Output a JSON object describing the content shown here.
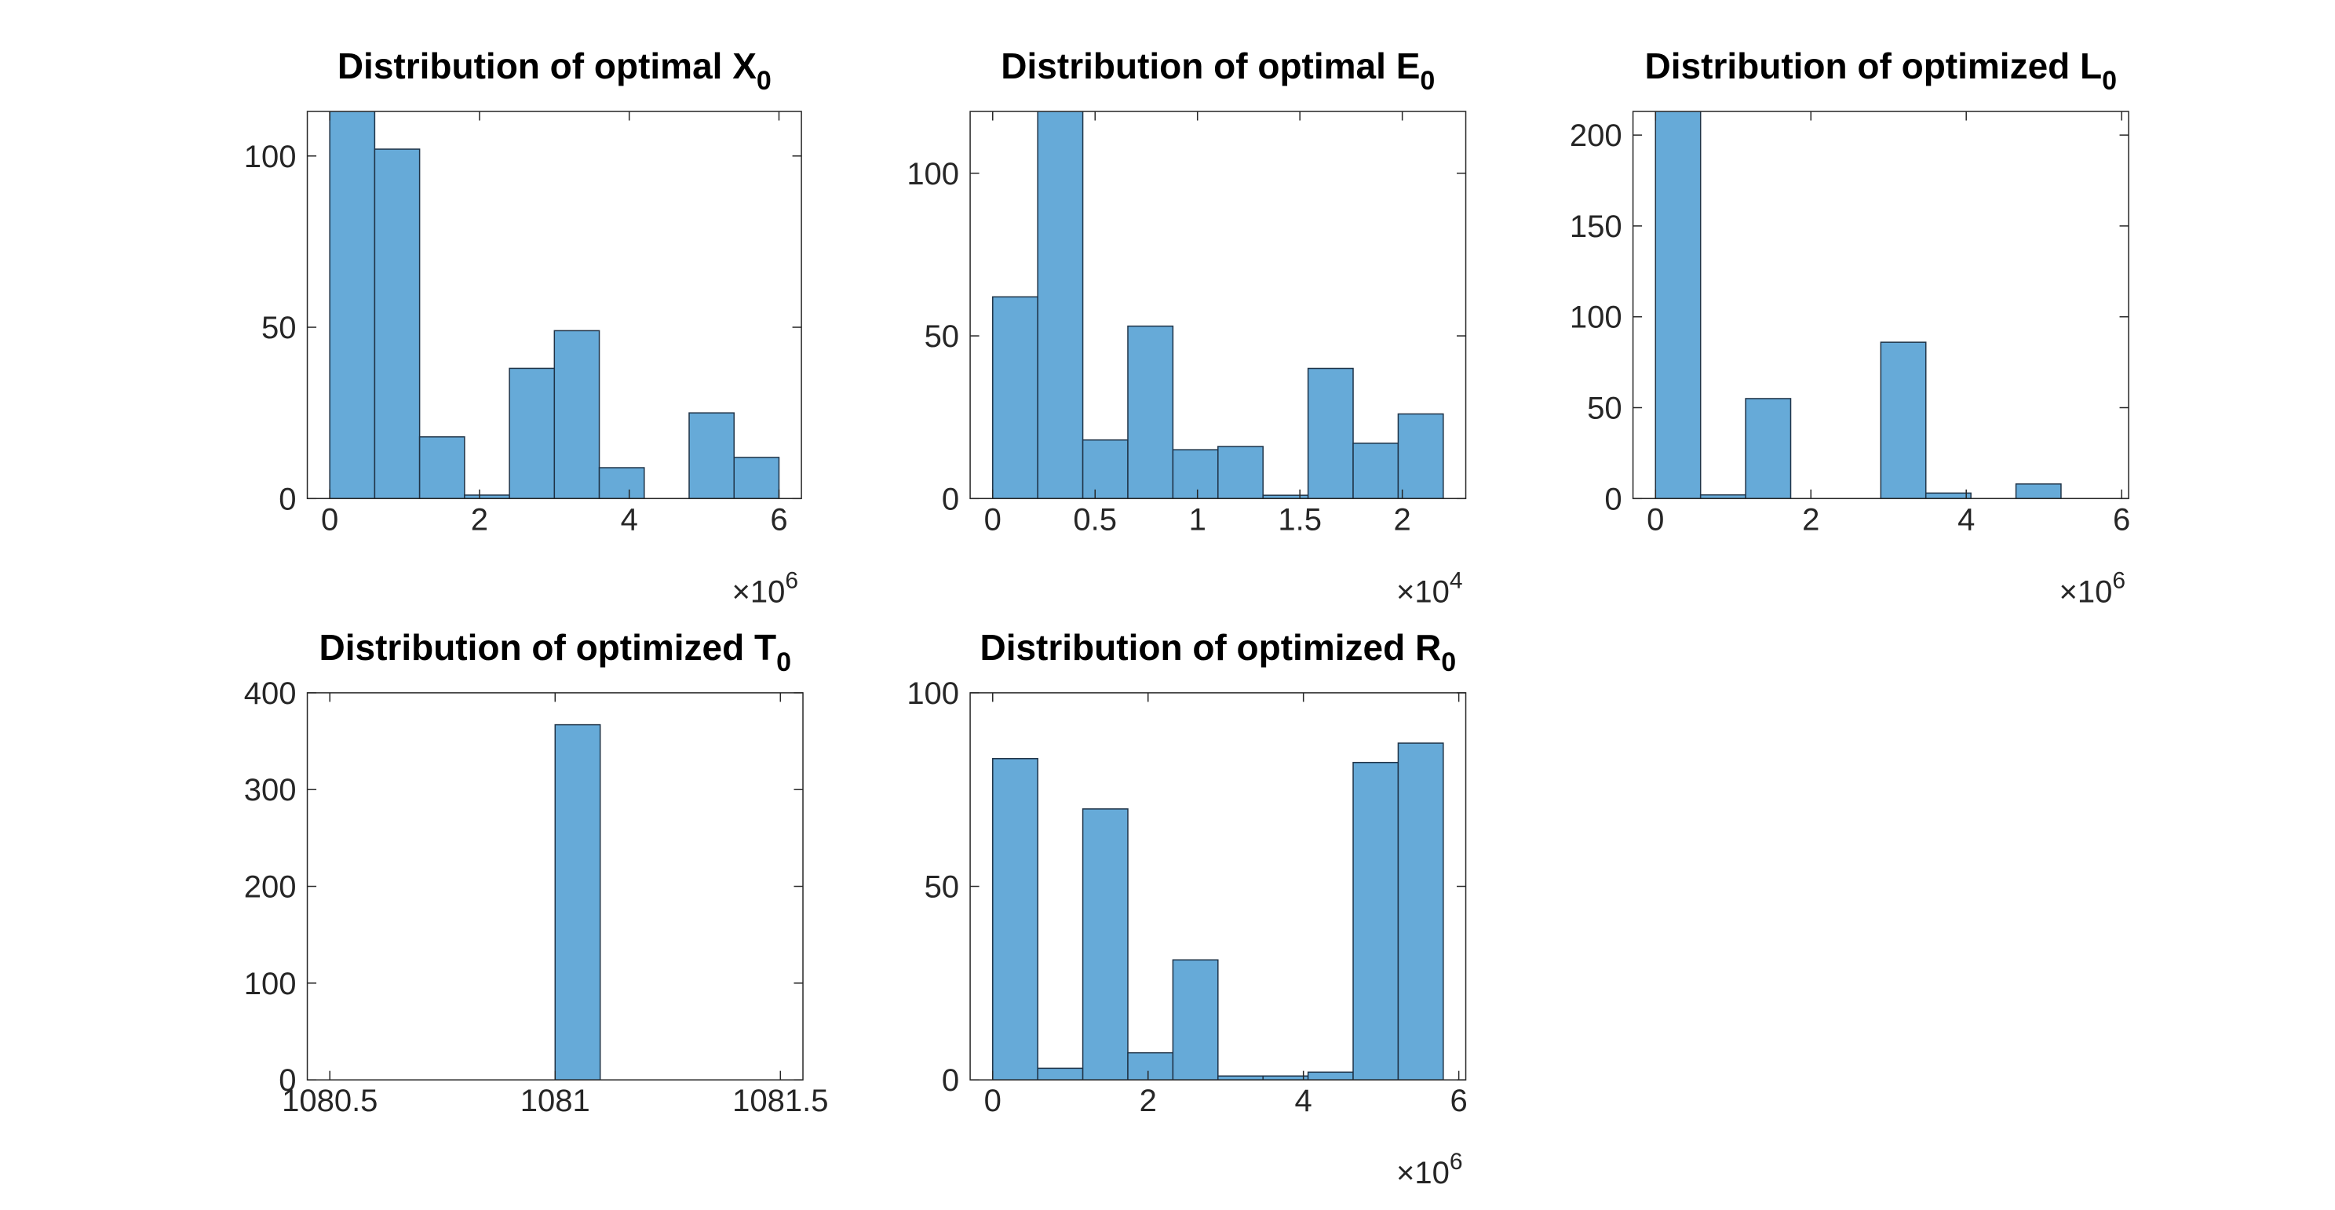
{
  "chart_data": [
    {
      "type": "bar",
      "title": "Distribution of optimal X",
      "title_subscript": "0",
      "bins": {
        "start": 0,
        "width": 0.6,
        "count": 10
      },
      "values": [
        115,
        102,
        18,
        1,
        38,
        49,
        9,
        0,
        25,
        12
      ],
      "xlim": [
        -0.3,
        6.3
      ],
      "ylim": [
        0,
        113
      ],
      "xticks": [
        0,
        2,
        4,
        6
      ],
      "xtick_labels": [
        "0",
        "2",
        "4",
        "6"
      ],
      "yticks": [
        0,
        50,
        100
      ],
      "ytick_labels": [
        "0",
        "50",
        "100"
      ],
      "x_exponent_base": "×10",
      "x_exponent_power": "6",
      "bar_color": "#66aad8"
    },
    {
      "type": "bar",
      "title": "Distribution of optimal E",
      "title_subscript": "0",
      "bins": {
        "start": 0,
        "width": 0.22,
        "count": 10
      },
      "values": [
        62,
        120,
        18,
        53,
        15,
        16,
        1,
        40,
        17,
        26
      ],
      "xlim": [
        -0.11,
        2.31
      ],
      "ylim": [
        0,
        119
      ],
      "xticks": [
        0,
        0.5,
        1,
        1.5,
        2
      ],
      "xtick_labels": [
        "0",
        "0.5",
        "1",
        "1.5",
        "2"
      ],
      "yticks": [
        0,
        50,
        100
      ],
      "ytick_labels": [
        "0",
        "50",
        "100"
      ],
      "x_exponent_base": "×10",
      "x_exponent_power": "4",
      "bar_color": "#66aad8"
    },
    {
      "type": "bar",
      "title": "Distribution of optimized L",
      "title_subscript": "0",
      "bins": {
        "start": 0,
        "width": 0.58,
        "count": 10
      },
      "values": [
        215,
        2,
        55,
        0,
        0,
        86,
        3,
        0,
        8,
        0
      ],
      "bins_override_note": "",
      "xlim": [
        -0.29,
        6.09
      ],
      "ylim": [
        0,
        213
      ],
      "xticks": [
        0,
        2,
        4,
        6
      ],
      "xtick_labels": [
        "0",
        "2",
        "4",
        "6"
      ],
      "yticks": [
        0,
        50,
        100,
        150,
        200
      ],
      "ytick_labels": [
        "0",
        "50",
        "100",
        "150",
        "200"
      ],
      "x_exponent_base": "×10",
      "x_exponent_power": "6",
      "bar_color": "#66aad8"
    },
    {
      "type": "bar",
      "title": "Distribution of optimized T",
      "title_subscript": "0",
      "bins": {
        "start": 1081,
        "width": 0.1,
        "count": 1
      },
      "values": [
        367
      ],
      "xlim": [
        1080.45,
        1081.55
      ],
      "ylim": [
        0,
        400
      ],
      "xticks": [
        1080.5,
        1081,
        1081.5
      ],
      "xtick_labels": [
        "1080.5",
        "1081",
        "1081.5"
      ],
      "yticks": [
        0,
        100,
        200,
        300,
        400
      ],
      "ytick_labels": [
        "0",
        "100",
        "200",
        "300",
        "400"
      ],
      "x_exponent_base": "",
      "x_exponent_power": "",
      "bar_color": "#66aad8"
    },
    {
      "type": "bar",
      "title": "Distribution of optimized R",
      "title_subscript": "0",
      "bins": {
        "start": 0,
        "width": 0.58,
        "count": 10
      },
      "values": [
        83,
        3,
        70,
        7,
        31,
        1,
        1,
        2,
        82,
        87
      ],
      "xlim": [
        -0.29,
        6.09
      ],
      "ylim": [
        0,
        100
      ],
      "xticks": [
        0,
        2,
        4,
        6
      ],
      "xtick_labels": [
        "0",
        "2",
        "4",
        "6"
      ],
      "yticks": [
        0,
        50,
        100
      ],
      "ytick_labels": [
        "0",
        "50",
        "100"
      ],
      "x_exponent_base": "×10",
      "x_exponent_power": "6",
      "bar_color": "#66aad8"
    }
  ]
}
